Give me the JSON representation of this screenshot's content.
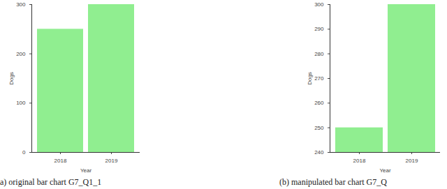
{
  "chart_data": [
    {
      "type": "bar",
      "caption": "a) original bar chart G7_Q1_1",
      "x_label": "Year",
      "y_label": "Dogs",
      "categories": [
        "2018",
        "2019"
      ],
      "values": [
        250,
        300
      ],
      "color": "#90ee90",
      "ylim": [
        0,
        300
      ],
      "yticks": [
        0,
        100,
        200,
        300
      ],
      "grid": false
    },
    {
      "type": "bar",
      "caption": "(b) manipulated bar chart G7_Q",
      "x_label": "Year",
      "y_label": "Dogs",
      "categories": [
        "2018",
        "2019"
      ],
      "values": [
        250,
        300
      ],
      "color": "#90ee90",
      "ylim": [
        240,
        300
      ],
      "yticks": [
        240,
        250,
        260,
        270,
        280,
        290,
        300
      ],
      "grid": false
    }
  ]
}
